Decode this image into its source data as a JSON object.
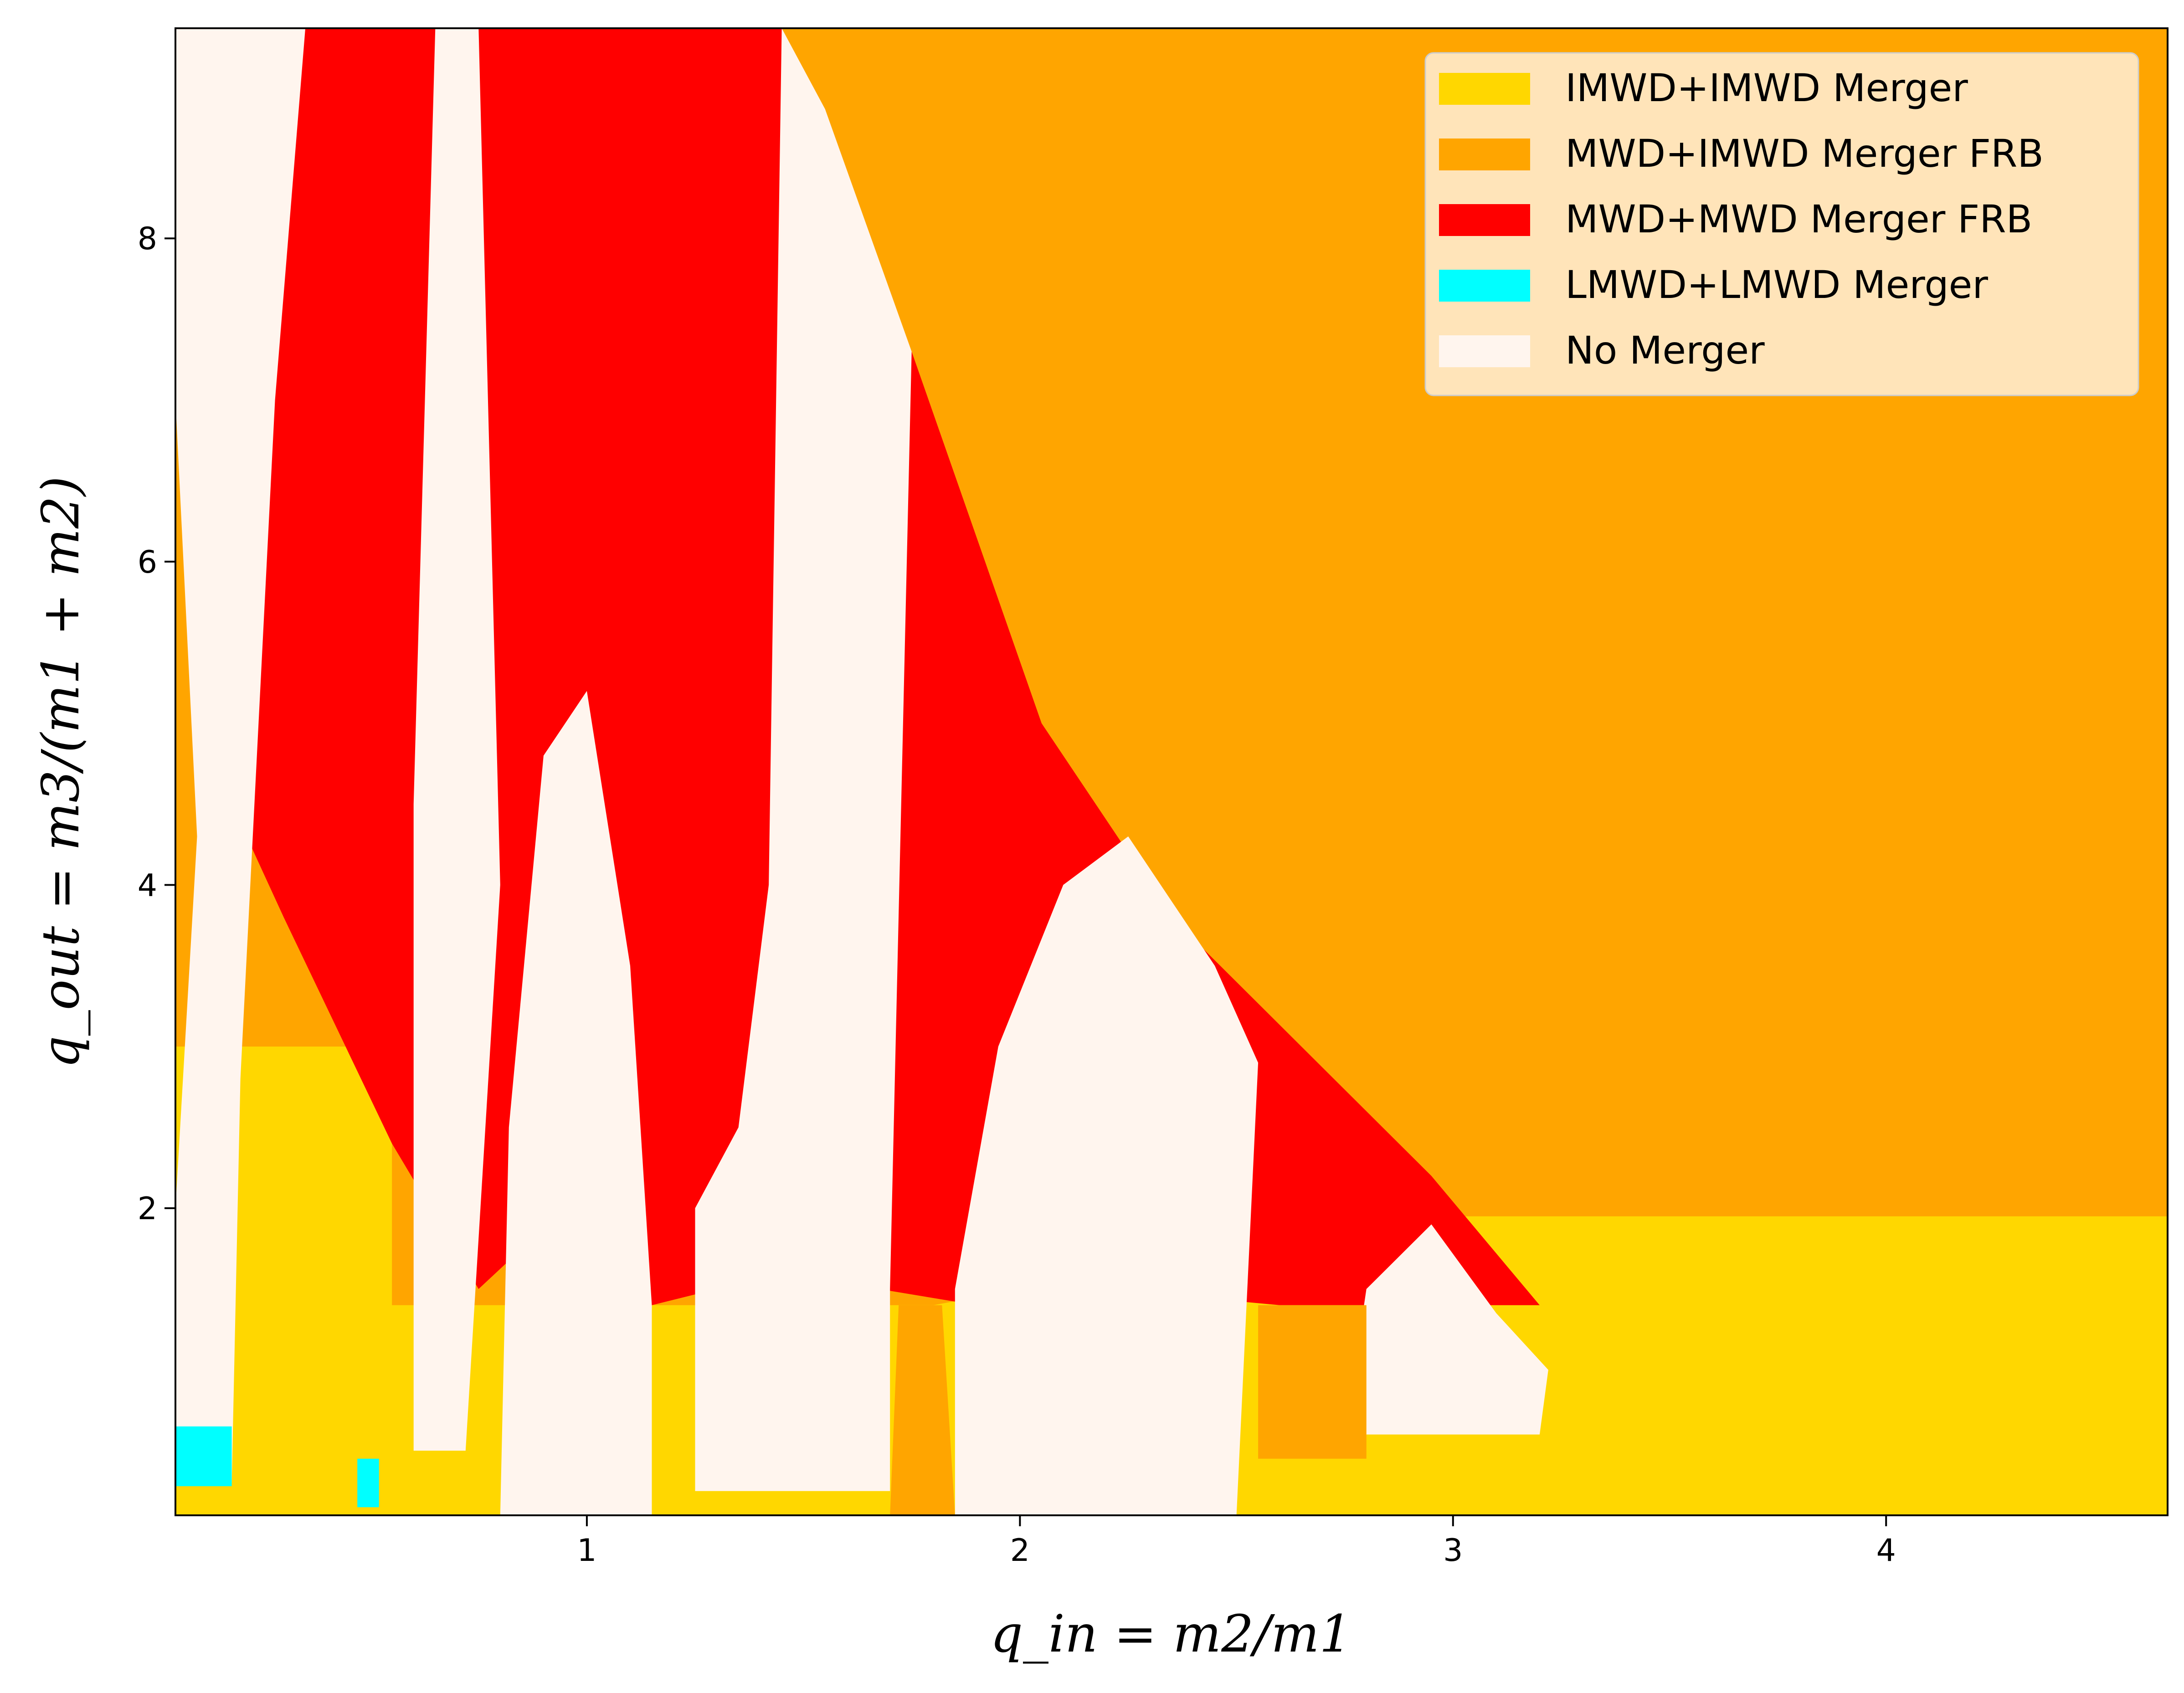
{
  "chart_data": {
    "type": "heatmap",
    "title": "",
    "xlabel": "q_in = m2/m1",
    "ylabel": "q_out = m3/(m1 + m2)",
    "xlim": [
      0.05,
      4.65
    ],
    "ylim": [
      0.1,
      9.3
    ],
    "xticks": [
      1,
      2,
      3,
      4
    ],
    "yticks": [
      2,
      4,
      6,
      8
    ],
    "grid": false,
    "legend_position": "top-right",
    "colors": {
      "imwd_imwd": "#FFD700",
      "mwd_imwd_frb": "#FFA500",
      "mwd_mwd_frb": "#FF0000",
      "lmwd_lmwd": "#00FFFF",
      "no_merger": "#FFF5EE"
    },
    "categories": [
      {
        "key": "imwd_imwd",
        "name": "IMWD+IMWD Merger"
      },
      {
        "key": "mwd_imwd_frb",
        "name": "MWD+IMWD Merger FRB"
      },
      {
        "key": "mwd_mwd_frb",
        "name": "MWD+MWD Merger FRB"
      },
      {
        "key": "lmwd_lmwd",
        "name": "LMWD+LMWD Merger"
      },
      {
        "key": "no_merger",
        "name": "No Merger"
      }
    ],
    "regions": [
      {
        "category": "mwd_imwd_frb",
        "points": [
          [
            0.05,
            0.1
          ],
          [
            4.65,
            0.1
          ],
          [
            4.65,
            9.3
          ],
          [
            0.05,
            9.3
          ]
        ]
      },
      {
        "category": "imwd_imwd",
        "points": [
          [
            0.05,
            0.1
          ],
          [
            4.65,
            0.1
          ],
          [
            4.65,
            1.95
          ],
          [
            2.9,
            1.95
          ],
          [
            1.8,
            1.4
          ],
          [
            0.05,
            1.4
          ]
        ]
      },
      {
        "category": "imwd_imwd",
        "points": [
          [
            0.05,
            0.1
          ],
          [
            0.55,
            0.1
          ],
          [
            0.55,
            3.0
          ],
          [
            0.05,
            3.0
          ]
        ]
      },
      {
        "category": "mwd_mwd_frb",
        "points": [
          [
            0.18,
            9.3
          ],
          [
            1.45,
            9.3
          ],
          [
            1.75,
            7.3
          ],
          [
            2.05,
            5.0
          ],
          [
            2.35,
            3.8
          ],
          [
            2.95,
            2.2
          ],
          [
            3.2,
            1.4
          ],
          [
            2.6,
            1.4
          ],
          [
            2.2,
            1.5
          ],
          [
            1.9,
            1.4
          ],
          [
            1.45,
            1.6
          ],
          [
            1.15,
            1.4
          ],
          [
            0.95,
            2.0
          ],
          [
            0.75,
            1.5
          ],
          [
            0.55,
            2.4
          ],
          [
            0.3,
            3.8
          ],
          [
            0.18,
            4.5
          ]
        ]
      },
      {
        "category": "no_merger",
        "points": [
          [
            0.05,
            0.3
          ],
          [
            0.18,
            0.3
          ],
          [
            0.2,
            2.8
          ],
          [
            0.28,
            7.0
          ],
          [
            0.35,
            9.3
          ],
          [
            0.05,
            9.3
          ],
          [
            0.05,
            7.0
          ],
          [
            0.1,
            4.3
          ],
          [
            0.05,
            2.0
          ]
        ]
      },
      {
        "category": "no_merger",
        "points": [
          [
            0.6,
            0.5
          ],
          [
            0.72,
            0.5
          ],
          [
            0.8,
            4.0
          ],
          [
            0.75,
            9.3
          ],
          [
            0.65,
            9.3
          ],
          [
            0.6,
            4.5
          ]
        ]
      },
      {
        "category": "no_merger",
        "points": [
          [
            0.8,
            0.1
          ],
          [
            1.15,
            0.1
          ],
          [
            1.15,
            1.4
          ],
          [
            1.1,
            3.5
          ],
          [
            1.0,
            5.2
          ],
          [
            0.9,
            4.8
          ],
          [
            0.82,
            2.5
          ]
        ]
      },
      {
        "category": "no_merger",
        "points": [
          [
            1.25,
            0.25
          ],
          [
            1.7,
            0.25
          ],
          [
            1.7,
            1.5
          ],
          [
            1.75,
            7.3
          ],
          [
            1.55,
            8.8
          ],
          [
            1.45,
            9.3
          ],
          [
            1.42,
            4.0
          ],
          [
            1.35,
            2.5
          ],
          [
            1.25,
            2.0
          ]
        ]
      },
      {
        "category": "no_merger",
        "points": [
          [
            1.85,
            0.1
          ],
          [
            2.5,
            0.1
          ],
          [
            2.55,
            2.9
          ],
          [
            2.45,
            3.5
          ],
          [
            2.25,
            4.3
          ],
          [
            2.1,
            4.0
          ],
          [
            1.95,
            3.0
          ],
          [
            1.85,
            1.5
          ]
        ]
      },
      {
        "category": "no_merger",
        "points": [
          [
            2.75,
            0.6
          ],
          [
            3.2,
            0.6
          ],
          [
            3.22,
            1.0
          ],
          [
            3.1,
            1.35
          ],
          [
            2.95,
            1.9
          ],
          [
            2.8,
            1.5
          ]
        ]
      },
      {
        "category": "mwd_imwd_frb",
        "points": [
          [
            1.7,
            0.1
          ],
          [
            1.85,
            0.1
          ],
          [
            1.82,
            1.4
          ],
          [
            1.72,
            1.4
          ]
        ]
      },
      {
        "category": "mwd_imwd_frb",
        "points": [
          [
            2.55,
            0.45
          ],
          [
            2.8,
            0.45
          ],
          [
            2.8,
            1.4
          ],
          [
            2.55,
            1.4
          ]
        ]
      },
      {
        "category": "lmwd_lmwd",
        "points": [
          [
            0.05,
            0.28
          ],
          [
            0.18,
            0.28
          ],
          [
            0.18,
            0.65
          ],
          [
            0.05,
            0.65
          ]
        ]
      },
      {
        "category": "lmwd_lmwd",
        "points": [
          [
            0.47,
            0.15
          ],
          [
            0.52,
            0.15
          ],
          [
            0.52,
            0.45
          ],
          [
            0.47,
            0.45
          ]
        ]
      }
    ]
  }
}
